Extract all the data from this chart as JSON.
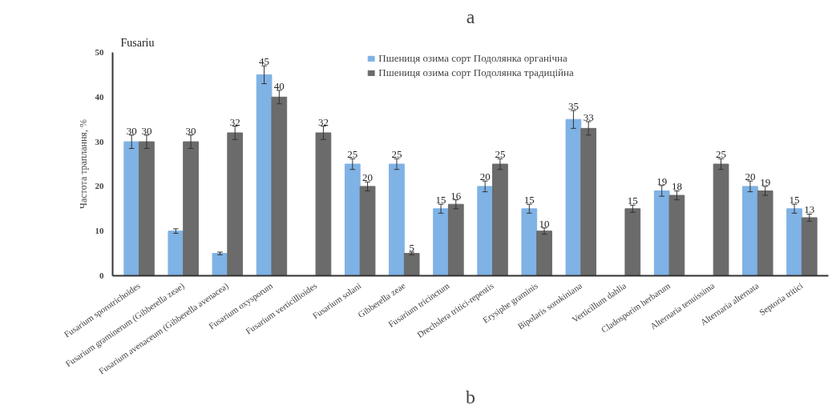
{
  "chart_data": {
    "type": "bar",
    "title": "a",
    "ylabel": "Частота траплання, %",
    "categories": [
      "Fusarium sporotrichoides",
      "Fusarium graminerum (Gibberella zeae)",
      "Fusarium avenaceum (Gibberella avenacea)",
      "Fusarium oxysporum",
      "Fusarium verticillioides",
      "Fusarium solani",
      "Gibberella zeae",
      "Fusarium tricinctum",
      "Drechslera tritici-repentis",
      "Erysiphe graminis",
      "Bipolaris sorokiniana",
      "Verticillum dahlia",
      "Cladosporim herbarum",
      "Alternaria tenuissima",
      "Alternaria alternata",
      "Septoria tritici"
    ],
    "series": [
      {
        "name": "Пшениця озима сорт Подолянка органічна",
        "color": "#7fb2e5",
        "values": [
          30,
          10,
          5,
          45,
          null,
          25,
          25,
          15,
          20,
          15,
          35,
          null,
          19,
          null,
          20,
          15
        ],
        "errors": [
          1.5,
          0.5,
          0.3,
          2,
          null,
          1.2,
          1.2,
          1,
          1.2,
          1,
          2,
          null,
          1.2,
          null,
          1.2,
          1
        ],
        "value_labels": [
          "30",
          null,
          null,
          "45",
          null,
          "25",
          "25",
          "15",
          "20",
          "15",
          "35",
          null,
          "19",
          null,
          "20",
          "15"
        ]
      },
      {
        "name": "Пшениця озима сорт Подолянка традиційна",
        "color": "#6b6b6b",
        "values": [
          30,
          30,
          32,
          40,
          32,
          20,
          5,
          16,
          25,
          10,
          33,
          15,
          18,
          25,
          19,
          13
        ],
        "errors": [
          1.5,
          1.5,
          1.5,
          1.5,
          1.5,
          1,
          0.3,
          1,
          1.2,
          0.7,
          1.5,
          0.8,
          1,
          1.2,
          1,
          0.8
        ],
        "value_labels": [
          "30",
          "30",
          "32",
          "40",
          "32",
          "20",
          "5",
          "16",
          "25",
          "10",
          "33",
          "15",
          "18",
          "25",
          "19",
          "13"
        ]
      }
    ],
    "ylim": [
      0,
      50
    ],
    "yticks": [
      0,
      10,
      20,
      30,
      40,
      50
    ],
    "grid": false,
    "legend": "top",
    "annotations": [
      "Fusariu",
      "b"
    ]
  }
}
